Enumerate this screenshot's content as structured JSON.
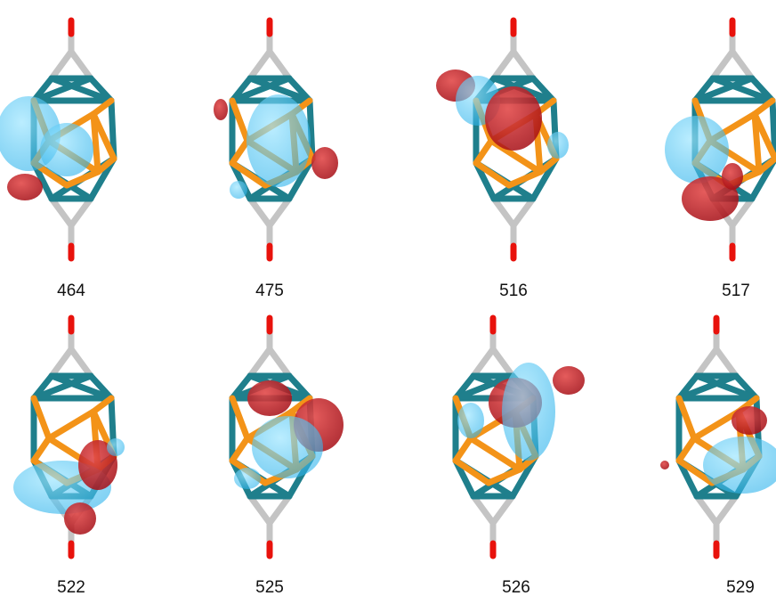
{
  "panels": [
    {
      "label": "464"
    },
    {
      "label": "475"
    },
    {
      "label": "516"
    },
    {
      "label": "517"
    },
    {
      "label": "522"
    },
    {
      "label": "525"
    },
    {
      "label": "526"
    },
    {
      "label": "529"
    }
  ]
}
